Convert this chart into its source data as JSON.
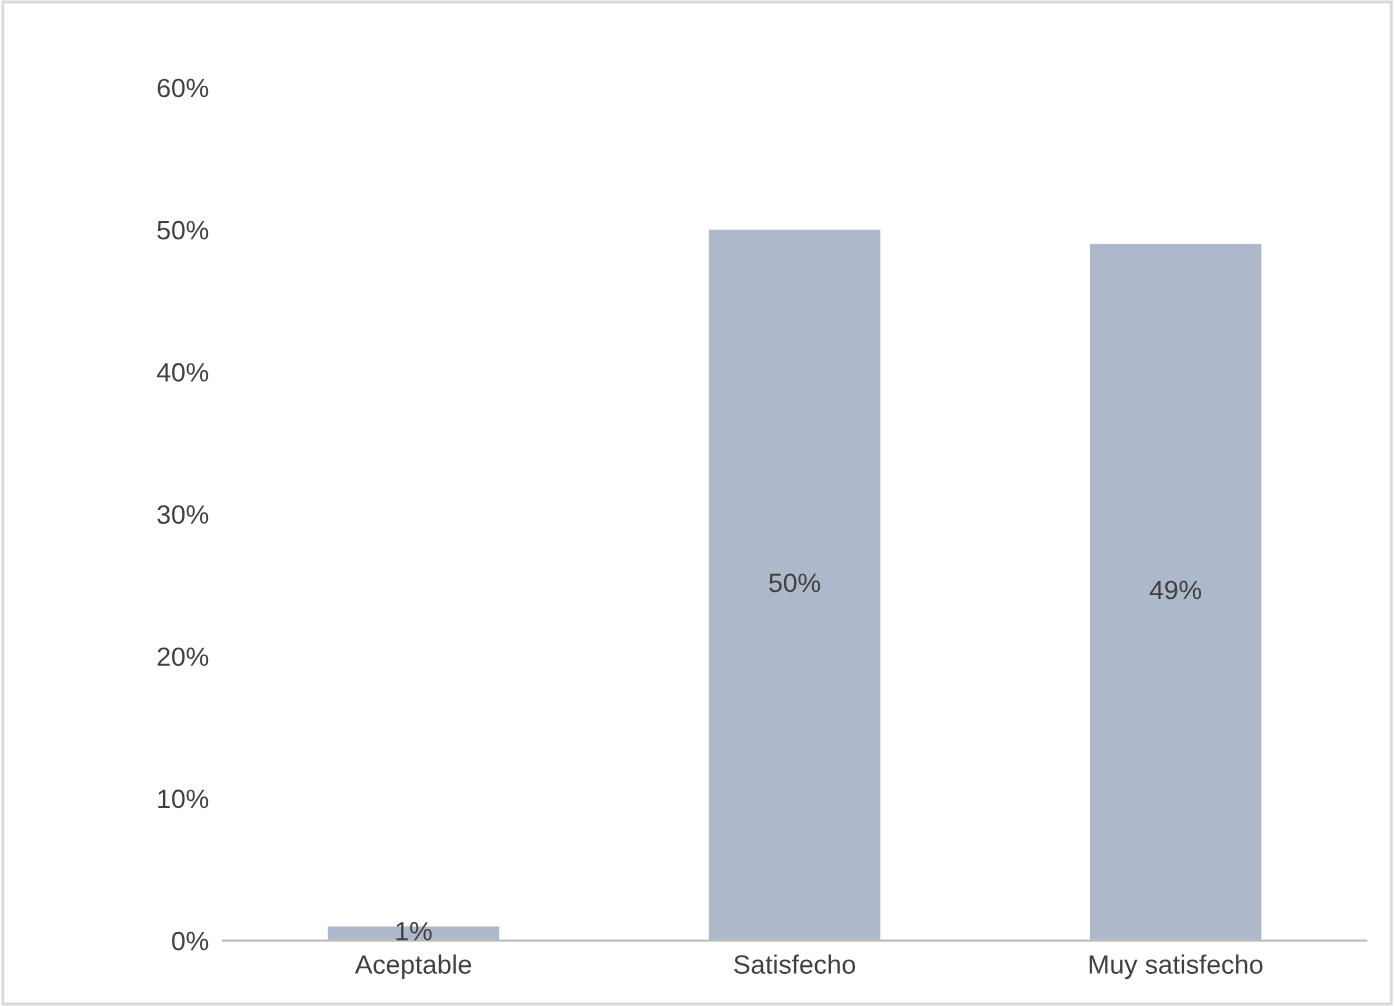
{
  "chart_data": {
    "type": "bar",
    "categories": [
      "Aceptable",
      "Satisfecho",
      "Muy satisfecho"
    ],
    "values": [
      1,
      50,
      49
    ],
    "value_labels": [
      "1%",
      "50%",
      "49%"
    ],
    "color": "#adb9ca",
    "ylim": [
      0,
      60
    ],
    "yticks": [
      {
        "value": 0,
        "label": "0%"
      },
      {
        "value": 10,
        "label": "10%"
      },
      {
        "value": 20,
        "label": "20%"
      },
      {
        "value": 30,
        "label": "30%"
      },
      {
        "value": 40,
        "label": "40%"
      },
      {
        "value": 50,
        "label": "50%"
      },
      {
        "value": 60,
        "label": "60%"
      }
    ],
    "grid": false,
    "legend": false
  }
}
